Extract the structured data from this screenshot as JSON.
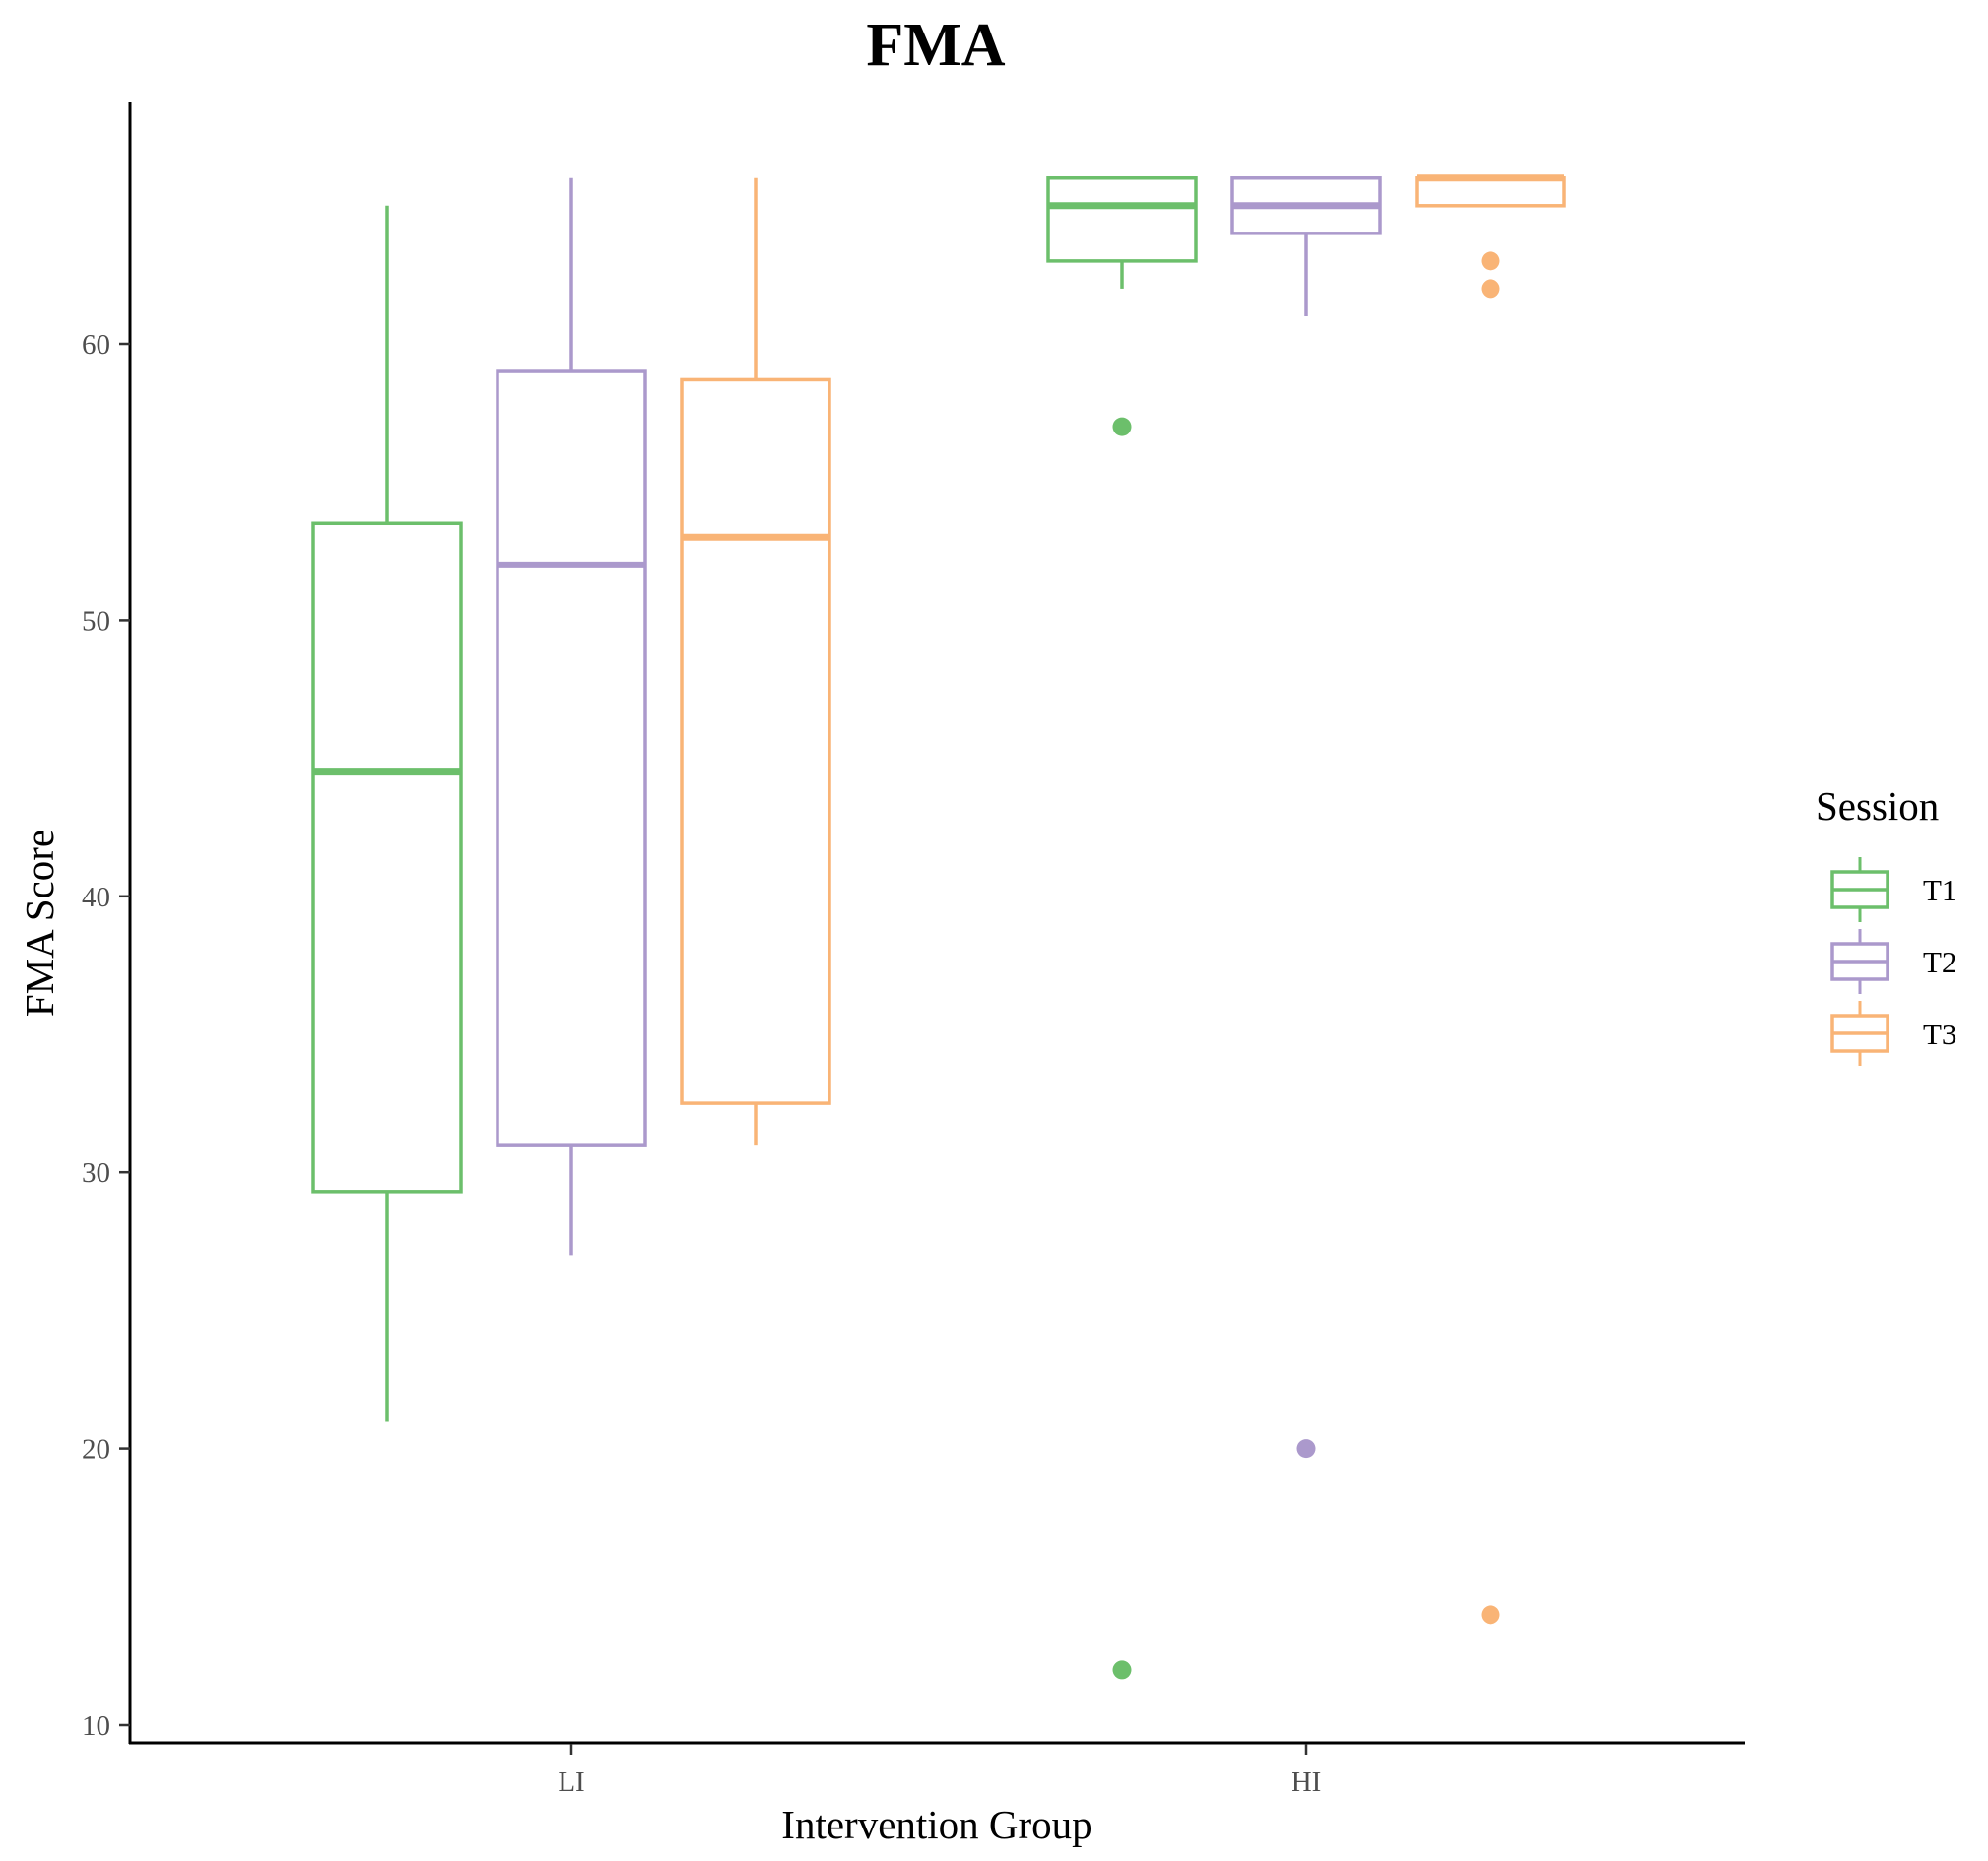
{
  "chart_data": {
    "type": "boxplot",
    "title": "FMA",
    "xlabel": "Intervention Group",
    "ylabel": "FMA Score",
    "categories": [
      "LI",
      "HI"
    ],
    "ylim": [
      9.4,
      67.3
    ],
    "yticks": [
      10,
      20,
      30,
      40,
      50,
      60
    ],
    "grid": false,
    "legend": {
      "title": "Session",
      "position": "right"
    },
    "series": [
      {
        "name": "T1",
        "color": "#6cbf6b",
        "boxes": [
          {
            "category": "LI",
            "min": 21,
            "q1": 29.3,
            "median": 44.5,
            "q3": 53.5,
            "max": 65,
            "outliers": []
          },
          {
            "category": "HI",
            "min": 62,
            "q1": 63,
            "median": 65,
            "q3": 66,
            "max": 66,
            "outliers": [
              57,
              12
            ]
          }
        ]
      },
      {
        "name": "T2",
        "color": "#ab99cc",
        "boxes": [
          {
            "category": "LI",
            "min": 27,
            "q1": 31,
            "median": 52,
            "q3": 59,
            "max": 66,
            "outliers": []
          },
          {
            "category": "HI",
            "min": 61,
            "q1": 64,
            "median": 65,
            "q3": 66,
            "max": 66,
            "outliers": [
              20
            ]
          }
        ]
      },
      {
        "name": "T3",
        "color": "#f9b476",
        "boxes": [
          {
            "category": "LI",
            "min": 31,
            "q1": 32.5,
            "median": 53,
            "q3": 58.7,
            "max": 66,
            "outliers": []
          },
          {
            "category": "HI",
            "min": 65,
            "q1": 65,
            "median": 66,
            "q3": 66,
            "max": 66,
            "outliers": [
              63,
              62,
              14
            ]
          }
        ]
      }
    ]
  }
}
